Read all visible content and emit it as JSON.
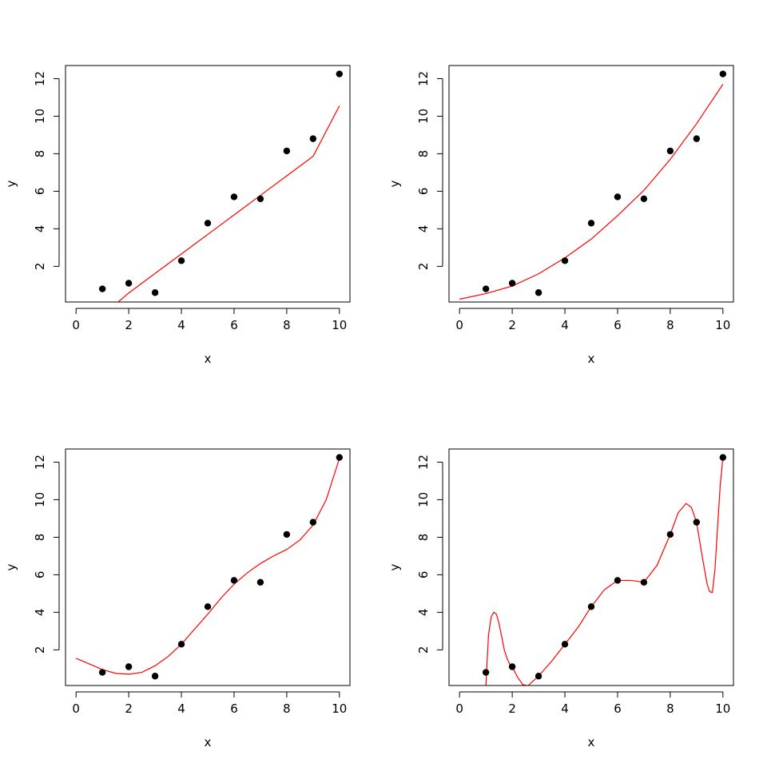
{
  "colors": {
    "points": "#000000",
    "fit": "#ff0000"
  },
  "chart_data": [
    {
      "type": "scatter",
      "xlabel": "x",
      "ylabel": "y",
      "xlim": [
        -0.4,
        10.4
      ],
      "ylim": [
        0.1,
        12.7
      ],
      "xticks": [
        0,
        2,
        4,
        6,
        8,
        10
      ],
      "yticks": [
        2,
        4,
        6,
        8,
        10,
        12
      ],
      "points": {
        "x": [
          1,
          2,
          3,
          4,
          5,
          6,
          7,
          8,
          9,
          10
        ],
        "y": [
          0.8,
          1.1,
          0.6,
          2.3,
          4.3,
          5.7,
          5.6,
          8.15,
          8.8,
          12.25
        ]
      },
      "fit": {
        "x": [
          1.6,
          2,
          3,
          4,
          5,
          6,
          7,
          8,
          9,
          10
        ],
        "y": [
          0.1,
          0.58,
          1.62,
          2.66,
          3.7,
          4.74,
          5.78,
          6.82,
          7.86,
          10.55
        ]
      }
    },
    {
      "type": "scatter",
      "xlabel": "x",
      "ylabel": "y",
      "xlim": [
        -0.4,
        10.4
      ],
      "ylim": [
        0.1,
        12.7
      ],
      "xticks": [
        0,
        2,
        4,
        6,
        8,
        10
      ],
      "yticks": [
        2,
        4,
        6,
        8,
        10,
        12
      ],
      "points": {
        "x": [
          1,
          2,
          3,
          4,
          5,
          6,
          7,
          8,
          9,
          10
        ],
        "y": [
          0.8,
          1.1,
          0.6,
          2.3,
          4.3,
          5.7,
          5.6,
          8.15,
          8.8,
          12.25
        ]
      },
      "fit": {
        "x": [
          0,
          1,
          2,
          3,
          4,
          5,
          6,
          7,
          8,
          9,
          10
        ],
        "y": [
          0.25,
          0.55,
          0.95,
          1.6,
          2.45,
          3.45,
          4.7,
          6.05,
          7.7,
          9.6,
          11.7
        ]
      }
    },
    {
      "type": "scatter",
      "xlabel": "x",
      "ylabel": "y",
      "xlim": [
        -0.4,
        10.4
      ],
      "ylim": [
        0.1,
        12.7
      ],
      "xticks": [
        0,
        2,
        4,
        6,
        8,
        10
      ],
      "yticks": [
        2,
        4,
        6,
        8,
        10,
        12
      ],
      "points": {
        "x": [
          1,
          2,
          3,
          4,
          5,
          6,
          7,
          8,
          9,
          10
        ],
        "y": [
          0.8,
          1.1,
          0.6,
          2.3,
          4.3,
          5.7,
          5.6,
          8.15,
          8.8,
          12.25
        ]
      },
      "fit": {
        "x": [
          0,
          0.5,
          1,
          1.5,
          2,
          2.5,
          3,
          3.5,
          4,
          4.5,
          5,
          5.5,
          6,
          6.5,
          7,
          7.5,
          8,
          8.5,
          9,
          9.5,
          10
        ],
        "y": [
          1.55,
          1.25,
          0.95,
          0.75,
          0.7,
          0.8,
          1.15,
          1.65,
          2.3,
          3.1,
          3.9,
          4.75,
          5.5,
          6.1,
          6.6,
          7.0,
          7.35,
          7.85,
          8.65,
          10.0,
          12.2
        ]
      }
    },
    {
      "type": "scatter",
      "xlabel": "x",
      "ylabel": "y",
      "xlim": [
        -0.4,
        10.4
      ],
      "ylim": [
        0.1,
        12.7
      ],
      "xticks": [
        0,
        2,
        4,
        6,
        8,
        10
      ],
      "yticks": [
        2,
        4,
        6,
        8,
        10,
        12
      ],
      "points": {
        "x": [
          1,
          2,
          3,
          4,
          5,
          6,
          7,
          8,
          9,
          10
        ],
        "y": [
          0.8,
          1.1,
          0.6,
          2.3,
          4.3,
          5.7,
          5.6,
          8.15,
          8.8,
          12.25
        ]
      },
      "fit": {
        "x": [
          1,
          1.1,
          1.2,
          1.3,
          1.4,
          1.5,
          1.6,
          1.7,
          1.8,
          1.9,
          2,
          2.2,
          2.4,
          2.6,
          2.8,
          3,
          3.5,
          4,
          4.5,
          5,
          5.5,
          6,
          6.5,
          7,
          7.5,
          8,
          8.3,
          8.6,
          8.8,
          9,
          9.2,
          9.4,
          9.5,
          9.6,
          9.7,
          9.8,
          9.9,
          10
        ],
        "y": [
          0.1,
          2.8,
          3.75,
          4.0,
          3.9,
          3.4,
          2.7,
          2.0,
          1.55,
          1.25,
          1.1,
          0.55,
          0.15,
          0.08,
          0.35,
          0.6,
          1.4,
          2.3,
          3.2,
          4.3,
          5.2,
          5.7,
          5.7,
          5.6,
          6.5,
          8.15,
          9.3,
          9.8,
          9.6,
          8.8,
          7.1,
          5.5,
          5.1,
          5.05,
          6.3,
          8.6,
          10.8,
          12.25
        ]
      }
    }
  ]
}
